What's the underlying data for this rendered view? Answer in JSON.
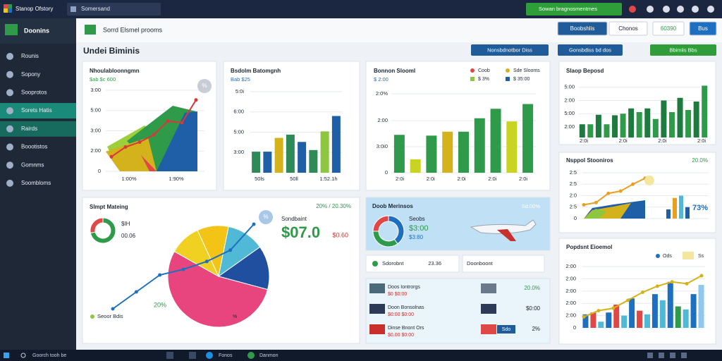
{
  "topbar": {
    "app_title": "Stanop Ofstory",
    "tab": "Somersand",
    "action": "Sowan bragnosmentmes"
  },
  "sidebar": {
    "title": "Doonins",
    "items": [
      "Rounis",
      "Sopony",
      "Sooprotos",
      "Sorets Hatis",
      "Rairds",
      "Boootistos",
      "Gomnms",
      "Soombloms"
    ]
  },
  "header": {
    "title": "Sorrd Elsmel prooms",
    "buttons": [
      "Boobshlis",
      "Chonos",
      "60390",
      "Bus"
    ]
  },
  "section": {
    "title": "Undei Biminis",
    "buttons": [
      "Nonsbdnotbor Diss",
      "Gonsbdiss bd dos",
      "Bbimiis Bbs"
    ]
  },
  "area": {
    "title": "Nhoulabloonngmn",
    "subtitle": "$ab $c 600",
    "badge": "%",
    "ylim": [
      0,
      100
    ],
    "yticks": [
      0,
      {
        "value": 25,
        "label": "2:00"
      },
      {
        "value": 50,
        "label": "3:00"
      },
      {
        "value": 75,
        "label": "5:00"
      },
      {
        "value": 100,
        "label": "3:00"
      }
    ],
    "xlabels": [
      "1:00%",
      "1:90%"
    ],
    "line": [
      18,
      30,
      36,
      45,
      62,
      60,
      88
    ]
  },
  "bar1": {
    "title": "Bsdolm Batomgnh",
    "subtitle": "Bab $25",
    "ylim": [
      0,
      100
    ],
    "yticks": [
      {
        "value": 25,
        "label": "3:00"
      },
      {
        "value": 50,
        "label": "5:00"
      },
      {
        "value": 75,
        "label": "6:00"
      },
      {
        "value": 100,
        "label": "5:0i"
      }
    ],
    "values": [
      26,
      26,
      43,
      47,
      38,
      28,
      51,
      70
    ],
    "colors": [
      "#2e8b57",
      "#1f5fa8",
      "#d4b21c",
      "#2e8b57",
      "#1f5fa8",
      "#2e8b57",
      "#8dc63f",
      "#1f5fa8"
    ],
    "xlabels": [
      "50ls",
      "50ll",
      "1:52.1h"
    ]
  },
  "bar2": {
    "title": "Bonnon Slooml",
    "subtitle": "$ 2:00",
    "legend": [
      "Coob",
      "Sde Slooms",
      "$ 3%",
      "$ 35:00"
    ],
    "ylim": [
      0,
      100
    ],
    "yticks": [
      0,
      {
        "value": 33,
        "label": "3:0i0"
      },
      {
        "value": 66,
        "label": "2:00"
      },
      {
        "value": 100,
        "label": "2:0%"
      }
    ],
    "values": [
      48,
      17,
      47,
      52,
      52,
      69,
      81,
      65,
      87
    ],
    "colors": [
      "#2e9a4a",
      "#c8d420",
      "#2e9a4a",
      "#d4b21c",
      "#2e9a4a",
      "#2e9a4a",
      "#2e9a4a",
      "#c8d420",
      "#2e9a4a"
    ],
    "xlabels": [
      "2:0i",
      "2:0i",
      "2:0i",
      "2:0i",
      "2:0i"
    ]
  },
  "bar3": {
    "title": "Slaop Beposd",
    "ylim": [
      0,
      100
    ],
    "yticks": [
      {
        "value": 20,
        "label": "2:00"
      },
      {
        "value": 45,
        "label": "5:00"
      },
      {
        "value": 70,
        "label": "2:00"
      },
      {
        "value": 95,
        "label": "5:00"
      }
    ],
    "values": [
      25,
      25,
      43,
      25,
      42,
      45,
      55,
      48,
      55,
      35,
      70,
      48,
      75,
      52,
      68,
      98
    ],
    "colors": [
      "#1e7a3e",
      "#2e9a4a",
      "#1e7a3e",
      "#2e9a4a",
      "#1e7a3e",
      "#2e9a4a",
      "#1e7a3e",
      "#2e9a4a",
      "#1e7a3e",
      "#2e9a4a",
      "#1e7a3e",
      "#2e9a4a",
      "#1e7a3e",
      "#2e9a4a",
      "#1e7a3e",
      "#2e9a4a"
    ],
    "xlabels": [
      "2:0i",
      "2:0i",
      "2:0i",
      "2:0i"
    ]
  },
  "stoon": {
    "title": "Nsppol Stooniros",
    "value": "20.0%",
    "pct": "73%",
    "ylim": [
      0,
      100
    ],
    "yticks": [
      0,
      {
        "value": 25,
        "label": "2:5"
      },
      {
        "value": 50,
        "label": "2:0"
      },
      {
        "value": 75,
        "label": "2:5"
      },
      {
        "value": 100,
        "label": "2:5"
      }
    ],
    "line": [
      30,
      35,
      55,
      60,
      75,
      88
    ],
    "bars": {
      "values": [
        20,
        45,
        50,
        25
      ],
      "colors": [
        "#1f5fa8",
        "#e8a020",
        "#4fb9d6",
        "#1f5fa8"
      ]
    }
  },
  "pop": {
    "title": "Popdsnt Eioemol",
    "legend": [
      "Ods",
      "Ss"
    ],
    "ylim": [
      0,
      100
    ],
    "yticks": [
      0,
      {
        "value": 20,
        "label": "2:00"
      },
      {
        "value": 40,
        "label": "2:00"
      },
      {
        "value": 60,
        "label": "2:00"
      },
      {
        "value": 80,
        "label": "2:00"
      },
      {
        "value": 100,
        "label": "2:00"
      }
    ],
    "values": [
      22,
      25,
      10,
      25,
      38,
      20,
      48,
      28,
      22,
      55,
      45,
      75,
      35,
      30,
      55,
      70
    ],
    "colors": [
      "#1f6fc0",
      "#e04848",
      "#4fb9d6",
      "#1f6fc0",
      "#e04848",
      "#4fb9d6",
      "#1f6fc0",
      "#e04848",
      "#4fb9d6",
      "#1f6fc0",
      "#4fb9d6",
      "#1f6fc0",
      "#2e9a4a",
      "#4fb9d6",
      "#1f6fc0",
      "#8ec8ee"
    ],
    "line": [
      18,
      28,
      32,
      45,
      58,
      68,
      75,
      72,
      85
    ]
  },
  "pie": {
    "title": "Slmpt Mateing",
    "top_right": "20% / 20.30%",
    "amount_label": "Sondbaint",
    "amount": "$07.0",
    "amount_note": "$0.60",
    "donut": {
      "values": [
        72,
        28
      ],
      "colors": [
        "#2e9a4a",
        "#e04848"
      ],
      "labels": [
        "$IH",
        "00.06"
      ]
    },
    "slices": {
      "values": [
        10,
        12,
        14,
        54,
        10
      ],
      "colors": [
        "#f3c316",
        "#4fb9d6",
        "#1f4f9e",
        "#e8457e",
        "#f0d020"
      ]
    },
    "line": [
      20,
      35,
      50,
      55,
      62,
      72,
      95
    ],
    "badge": "%",
    "legend": "Seoor Bdis",
    "note": "20%",
    "slice_note": "%"
  },
  "plane": {
    "title": "Doob Merinsos",
    "top_right": "Sd.00%",
    "lines": [
      "Seobs",
      "$3:00",
      "$3:80"
    ],
    "donut": {
      "values": [
        40,
        35,
        25
      ],
      "colors": [
        "#1f6fc0",
        "#2e9a4a",
        "#e04848"
      ]
    }
  },
  "chips": [
    {
      "label": "Sdorobnt",
      "value": "23.36"
    },
    {
      "label": "Doonboont"
    }
  ],
  "list": [
    {
      "name": "Doos Iontrorgs",
      "sub": "$0 $0:00",
      "value": "20.0%"
    },
    {
      "name": "Doon Bonsolnas",
      "sub": "$0:00 $0:00",
      "value": "$0:00"
    },
    {
      "name": "Dinse Bnont Ors",
      "sub": "$0.00 $0:00",
      "value": "2%",
      "tag": "Sdo"
    }
  ],
  "taskbar": {
    "search": "Goorch tooh be",
    "apps": [
      "Fonos",
      "Danmon"
    ]
  }
}
